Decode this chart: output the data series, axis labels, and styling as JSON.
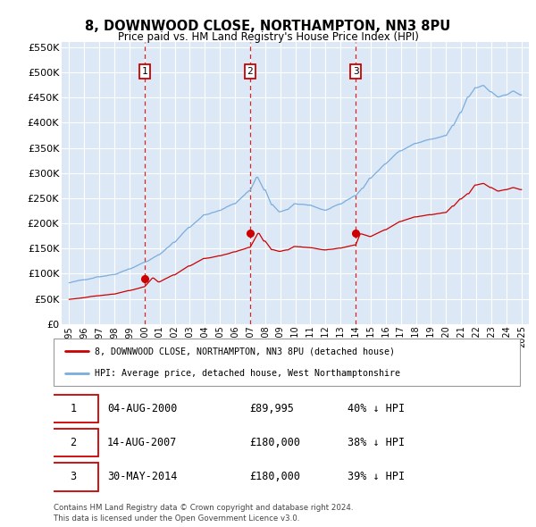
{
  "title": "8, DOWNWOOD CLOSE, NORTHAMPTON, NN3 8PU",
  "subtitle": "Price paid vs. HM Land Registry's House Price Index (HPI)",
  "background_color": "#ffffff",
  "plot_background": "#dce8f5",
  "grid_color": "#ffffff",
  "hpi_color": "#7aaddd",
  "price_color": "#cc0000",
  "vline_color": "#cc0000",
  "ylim": [
    0,
    560000
  ],
  "yticks": [
    0,
    50000,
    100000,
    150000,
    200000,
    250000,
    300000,
    350000,
    400000,
    450000,
    500000,
    550000
  ],
  "legend_entries": [
    {
      "label": "8, DOWNWOOD CLOSE, NORTHAMPTON, NN3 8PU (detached house)",
      "color": "#cc0000"
    },
    {
      "label": "HPI: Average price, detached house, West Northamptonshire",
      "color": "#7aaddd"
    }
  ],
  "table_rows": [
    {
      "num": "1",
      "date": "04-AUG-2000",
      "price": "£89,995",
      "pct": "40% ↓ HPI"
    },
    {
      "num": "2",
      "date": "14-AUG-2007",
      "price": "£180,000",
      "pct": "38% ↓ HPI"
    },
    {
      "num": "3",
      "date": "30-MAY-2014",
      "price": "£180,000",
      "pct": "39% ↓ HPI"
    }
  ],
  "sale_years": [
    2000,
    2007,
    2014
  ],
  "sale_prices": [
    89995,
    180000,
    180000
  ],
  "footer": "Contains HM Land Registry data © Crown copyright and database right 2024.\nThis data is licensed under the Open Government Licence v3.0.",
  "x_start_year": 1995,
  "x_end_year": 2025
}
